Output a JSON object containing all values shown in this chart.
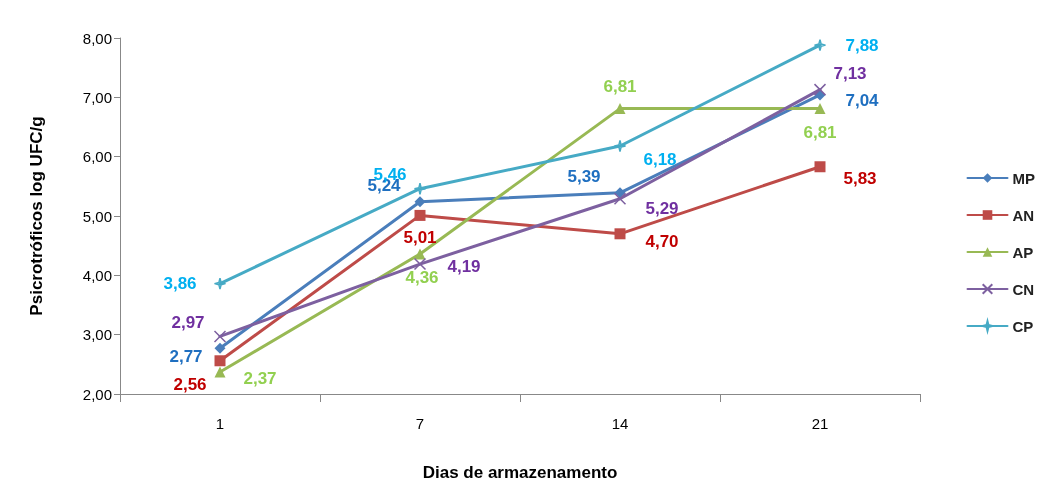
{
  "chart_data": {
    "type": "line",
    "xlabel": "Dias de armazenamento",
    "ylabel": "Psicrotróficos log UFC/g",
    "categories": [
      "1",
      "7",
      "14",
      "21"
    ],
    "ylim": [
      2,
      8
    ],
    "yticks": [
      {
        "value": 2,
        "label": "2,00"
      },
      {
        "value": 3,
        "label": "3,00"
      },
      {
        "value": 4,
        "label": "4,00"
      },
      {
        "value": 5,
        "label": "5,00"
      },
      {
        "value": 6,
        "label": "6,00"
      },
      {
        "value": 7,
        "label": "7,00"
      },
      {
        "value": 8,
        "label": "8,00"
      }
    ],
    "grid": false,
    "legend": "right",
    "line_style": "solid",
    "series": [
      {
        "name": "MP",
        "color": "#4a7ebb",
        "marker": "diamond",
        "values": [
          2.77,
          5.24,
          5.39,
          7.04
        ],
        "value_labels": [
          "2,77",
          "5,24",
          "5,39",
          "7,04"
        ]
      },
      {
        "name": "AN",
        "color": "#be4b48",
        "marker": "square",
        "values": [
          2.56,
          5.01,
          4.7,
          5.83
        ],
        "value_labels": [
          "2,56",
          "5,01",
          "4,70",
          "5,83"
        ]
      },
      {
        "name": "AP",
        "color": "#98b954",
        "marker": "triangle",
        "values": [
          2.37,
          4.36,
          6.81,
          6.81
        ],
        "value_labels": [
          "2,37",
          "4,36",
          "6,81",
          "6,81"
        ]
      },
      {
        "name": "CN",
        "color": "#7d60a0",
        "marker": "cross",
        "values": [
          2.97,
          4.19,
          5.29,
          7.13
        ],
        "value_labels": [
          "2,97",
          "4,19",
          "5,29",
          "7,13"
        ]
      },
      {
        "name": "CP",
        "color": "#46aac5",
        "marker": "star",
        "values": [
          3.86,
          5.46,
          6.18,
          7.88
        ],
        "value_labels": [
          "3,86",
          "5,46",
          "6,18",
          "7,88"
        ]
      }
    ]
  }
}
